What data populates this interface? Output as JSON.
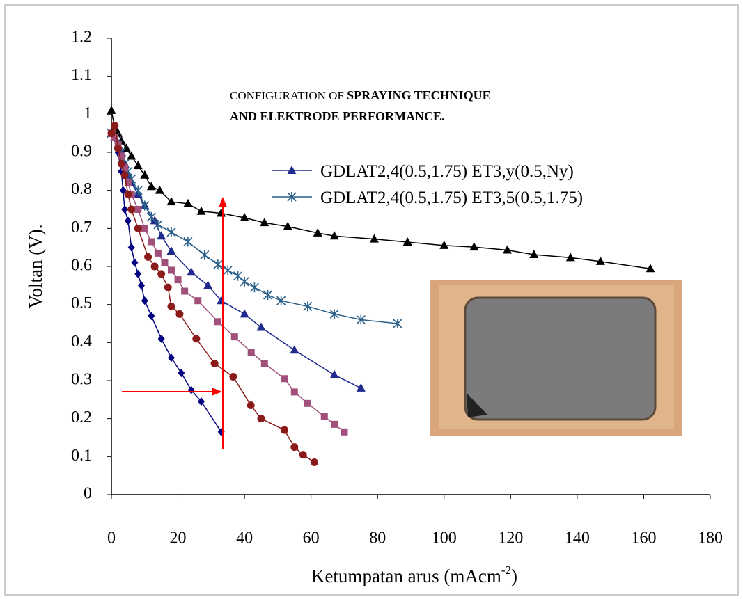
{
  "chart_data": {
    "type": "line",
    "title": "CONFIGURATION OF",
    "title_bold": [
      "SPRAYING TECHNIQUE",
      "AND ELEKTRODE PERFORMANCE."
    ],
    "ylabel": "Voltan (V).",
    "xlabel": "Ketumpatan arus (mAcm",
    "xlabel_sup": "-2",
    "xlabel_end": ")",
    "xlim": [
      0,
      180
    ],
    "xticks": [
      0,
      20,
      40,
      60,
      80,
      100,
      120,
      140,
      160,
      180
    ],
    "ylim": [
      0,
      1.2
    ],
    "yticks": [
      0,
      0.1,
      0.2,
      0.3,
      0.4,
      0.5,
      0.6,
      0.7,
      0.8,
      0.9,
      1,
      1.1,
      1.2
    ],
    "grid": false,
    "series": [
      {
        "color": "#000000",
        "marker": "triangle",
        "x": [
          0,
          1,
          2,
          3,
          4.5,
          6,
          8,
          10,
          12,
          14.5,
          18,
          23,
          27,
          33,
          40,
          46,
          53,
          62,
          67,
          79,
          89,
          100,
          109,
          119,
          127,
          138,
          147,
          162
        ],
        "values": [
          1.01,
          0.965,
          0.95,
          0.93,
          0.91,
          0.89,
          0.865,
          0.84,
          0.81,
          0.8,
          0.77,
          0.765,
          0.745,
          0.74,
          0.728,
          0.715,
          0.705,
          0.688,
          0.68,
          0.672,
          0.664,
          0.655,
          0.651,
          0.643,
          0.631,
          0.623,
          0.613,
          0.594
        ]
      },
      {
        "name": "GDLAT2,4(0.5,1.75) ET3,y(0.5,Ny)",
        "color": "#1f2a8c",
        "marker": "triangle",
        "x": [
          0,
          1,
          2,
          3,
          4,
          5,
          6,
          8,
          10,
          13,
          15,
          18,
          24,
          29,
          33,
          40,
          45,
          55,
          67,
          75
        ],
        "values": [
          0.95,
          0.94,
          0.92,
          0.9,
          0.87,
          0.84,
          0.82,
          0.79,
          0.76,
          0.72,
          0.68,
          0.64,
          0.585,
          0.55,
          0.51,
          0.475,
          0.44,
          0.38,
          0.315,
          0.28
        ]
      },
      {
        "name": "GDLAT2,4(0.5,1.75) ET3,5(0.5,1.75)",
        "color": "#2a5f8a",
        "marker": "star",
        "x": [
          0,
          1,
          2,
          3,
          4,
          5,
          6,
          8,
          10,
          12,
          14,
          18,
          23,
          28,
          32,
          35,
          38,
          40,
          43,
          47,
          51,
          59,
          67,
          75,
          86
        ],
        "values": [
          0.95,
          0.94,
          0.92,
          0.9,
          0.87,
          0.85,
          0.83,
          0.8,
          0.76,
          0.73,
          0.71,
          0.69,
          0.665,
          0.63,
          0.605,
          0.59,
          0.575,
          0.56,
          0.545,
          0.525,
          0.51,
          0.495,
          0.475,
          0.46,
          0.45
        ]
      },
      {
        "color": "#000080",
        "marker": "diamond",
        "x": [
          0,
          1,
          2,
          3,
          3.5,
          4,
          5,
          6,
          7,
          8,
          9,
          10,
          12,
          15,
          18,
          21,
          24,
          27,
          33
        ],
        "values": [
          0.95,
          0.94,
          0.9,
          0.85,
          0.8,
          0.75,
          0.72,
          0.65,
          0.61,
          0.58,
          0.55,
          0.51,
          0.47,
          0.41,
          0.36,
          0.32,
          0.275,
          0.245,
          0.165
        ]
      },
      {
        "color": "#a0507a",
        "marker": "square",
        "x": [
          0,
          1,
          2,
          3,
          4,
          5,
          6,
          8,
          10,
          12,
          14,
          16,
          18,
          20,
          22,
          26,
          32,
          37,
          42,
          46,
          52,
          55,
          59,
          64,
          67,
          70
        ],
        "values": [
          0.95,
          0.94,
          0.92,
          0.89,
          0.86,
          0.82,
          0.79,
          0.75,
          0.7,
          0.665,
          0.635,
          0.61,
          0.59,
          0.565,
          0.535,
          0.51,
          0.455,
          0.415,
          0.375,
          0.345,
          0.305,
          0.27,
          0.24,
          0.205,
          0.185,
          0.165
        ]
      },
      {
        "color": "#8b1a1a",
        "marker": "circle",
        "x": [
          0,
          1,
          2,
          3,
          4,
          5,
          6,
          8,
          11,
          13,
          15,
          17,
          18,
          20.5,
          25.5,
          31,
          36.6,
          41.9,
          45,
          52,
          55,
          57.6,
          61
        ],
        "values": [
          0.95,
          0.97,
          0.91,
          0.87,
          0.84,
          0.79,
          0.75,
          0.7,
          0.625,
          0.6,
          0.58,
          0.545,
          0.495,
          0.475,
          0.41,
          0.345,
          0.31,
          0.235,
          0.2,
          0.17,
          0.125,
          0.105,
          0.085
        ]
      }
    ]
  }
}
